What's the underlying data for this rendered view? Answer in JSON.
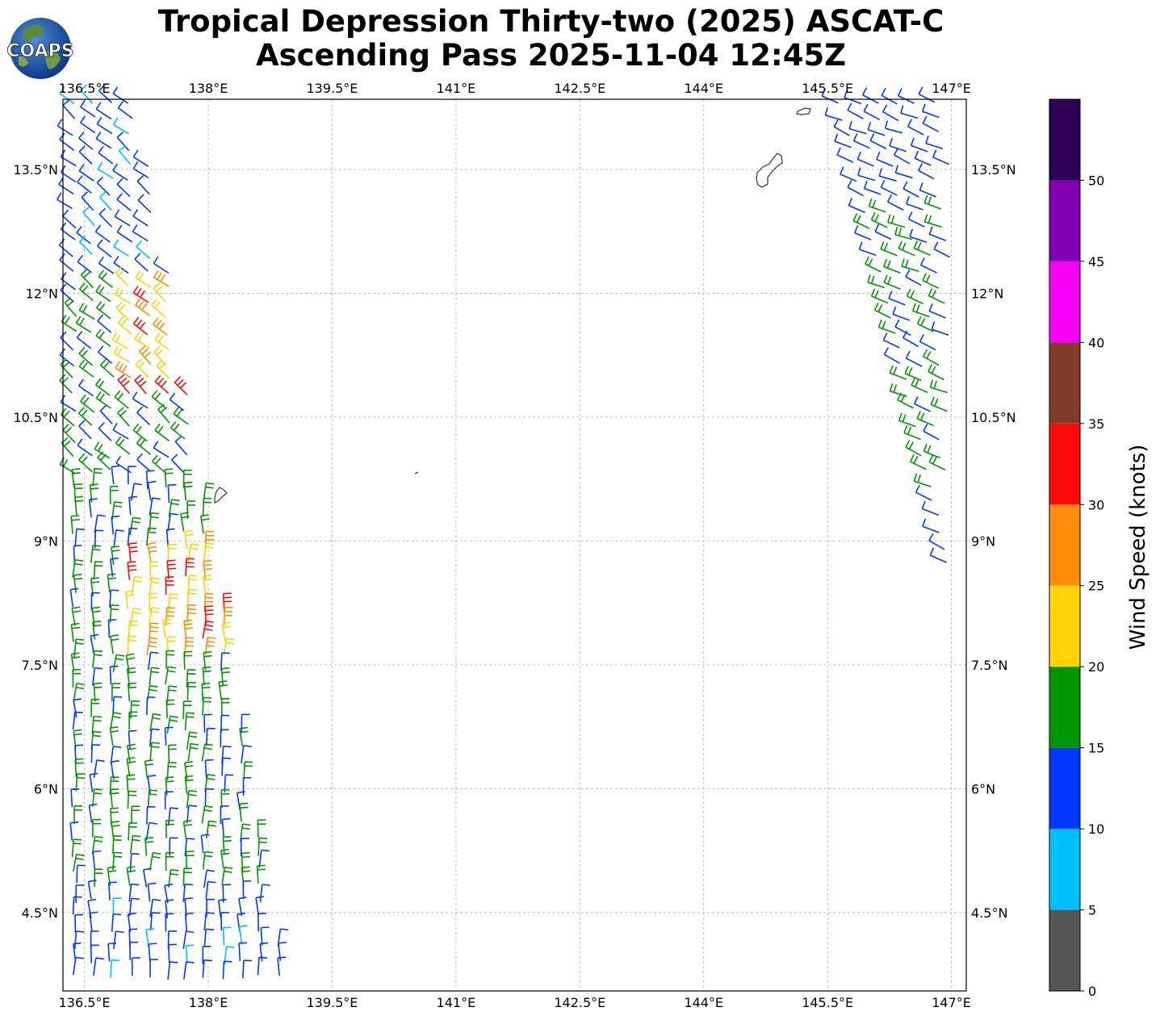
{
  "title": {
    "line1": "Tropical Depression Thirty-two (2025) ASCAT-C",
    "line2": "Ascending Pass 2025-11-04 12:45Z"
  },
  "logo": {
    "text": "COAPS"
  },
  "map_axes": {
    "lon_ticks": [
      {
        "value": 136.5,
        "label": "136.5°E"
      },
      {
        "value": 138,
        "label": "138°E"
      },
      {
        "value": 139.5,
        "label": "139.5°E"
      },
      {
        "value": 141,
        "label": "141°E"
      },
      {
        "value": 142.5,
        "label": "142.5°E"
      },
      {
        "value": 144,
        "label": "144°E"
      },
      {
        "value": 145.5,
        "label": "145.5°E"
      },
      {
        "value": 147,
        "label": "147°E"
      }
    ],
    "lat_ticks": [
      {
        "value": 13.5,
        "label": "13.5°N"
      },
      {
        "value": 12,
        "label": "12°N"
      },
      {
        "value": 10.5,
        "label": "10.5°N"
      },
      {
        "value": 9,
        "label": "9°N"
      },
      {
        "value": 7.5,
        "label": "7.5°N"
      },
      {
        "value": 6,
        "label": "6°N"
      },
      {
        "value": 4.5,
        "label": "4.5°N"
      }
    ],
    "lon_range": [
      136.24,
      147.18
    ],
    "lat_range": [
      3.55,
      14.35
    ],
    "grid": true
  },
  "colorbar": {
    "title": "Wind Speed (knots)",
    "levels": [
      {
        "from": 0,
        "to": 5,
        "color": "#555555"
      },
      {
        "from": 5,
        "to": 10,
        "color": "#00bfff"
      },
      {
        "from": 10,
        "to": 15,
        "color": "#0038ff"
      },
      {
        "from": 15,
        "to": 20,
        "color": "#009600"
      },
      {
        "from": 20,
        "to": 25,
        "color": "#ffd20a"
      },
      {
        "from": 25,
        "to": 30,
        "color": "#ff8c0a"
      },
      {
        "from": 30,
        "to": 35,
        "color": "#ff0a0a"
      },
      {
        "from": 35,
        "to": 40,
        "color": "#803c28"
      },
      {
        "from": 40,
        "to": 45,
        "color": "#f500f5"
      },
      {
        "from": 45,
        "to": 50,
        "color": "#8200b4"
      },
      {
        "from": 50,
        "to": 55,
        "color": "#2d0055"
      }
    ],
    "tick_labels": [
      "0",
      "5",
      "10",
      "15",
      "20",
      "25",
      "30",
      "35",
      "40",
      "45",
      "50"
    ]
  },
  "wind_swaths": [
    {
      "name": "west",
      "lon_left_north": 136.32,
      "lon_right_north": 137.23,
      "lon_left_south": 136.32,
      "lon_right_south": 139.0,
      "lat_top": 14.3,
      "lat_bottom": 3.6
    },
    {
      "name": "east",
      "lon_left_north": 145.6,
      "lon_right_north": 147.2,
      "lon_left_south": 147.0,
      "lon_right_south": 147.2,
      "lat_top": 14.3,
      "lat_bottom": 8.3
    }
  ]
}
